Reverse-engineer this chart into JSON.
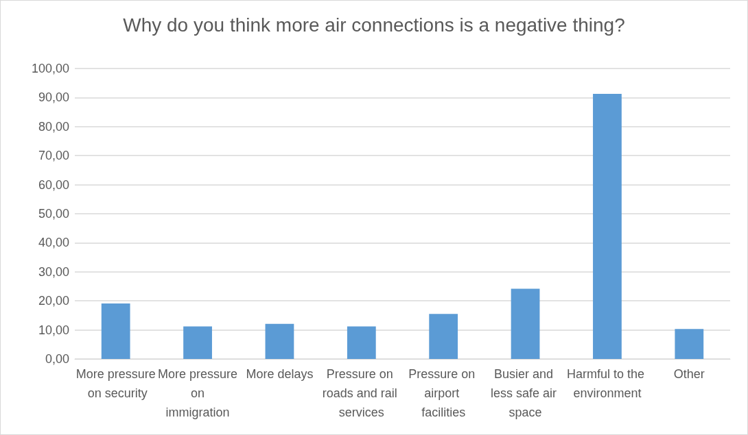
{
  "chart_data": {
    "type": "bar",
    "title": "Why do you think more air connections is a negative thing?",
    "categories": [
      "More pressure on security",
      "More pressure on immigration",
      "More delays",
      "Pressure on roads and rail services",
      "Pressure on airport facilities",
      "Busier and less safe air space",
      "Harmful to the environment",
      "Other"
    ],
    "values": [
      19.1,
      11.2,
      12.1,
      11.2,
      15.5,
      24.2,
      91.3,
      10.3
    ],
    "color": "#5b9bd5",
    "ylim": [
      0,
      100
    ],
    "yticks": [
      {
        "value": 0,
        "label": "0,00"
      },
      {
        "value": 10,
        "label": "10,00"
      },
      {
        "value": 20,
        "label": "20,00"
      },
      {
        "value": 30,
        "label": "30,00"
      },
      {
        "value": 40,
        "label": "40,00"
      },
      {
        "value": 50,
        "label": "50,00"
      },
      {
        "value": 60,
        "label": "60,00"
      },
      {
        "value": 70,
        "label": "70,00"
      },
      {
        "value": 80,
        "label": "80,00"
      },
      {
        "value": 90,
        "label": "90,00"
      },
      {
        "value": 100,
        "label": "100,00"
      }
    ],
    "grid": "y"
  }
}
